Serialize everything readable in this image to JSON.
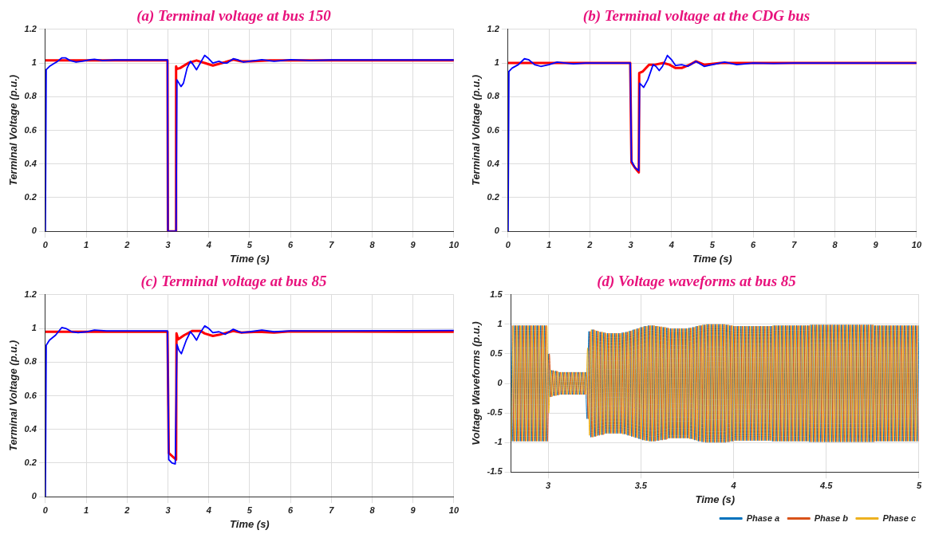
{
  "chart_data": [
    {
      "type": "line",
      "title": "(a) Terminal voltage at bus 150",
      "xlabel": "Time (s)",
      "ylabel": "Terminal Voltage (p.u.)",
      "xlim": [
        0,
        10
      ],
      "xticks": [
        0,
        1,
        2,
        3,
        4,
        5,
        6,
        7,
        8,
        9,
        10
      ],
      "ylim": [
        0,
        1.2
      ],
      "yticks": [
        0,
        0.2,
        0.4,
        0.6,
        0.8,
        1,
        1.2
      ],
      "grid": true,
      "series": [
        {
          "color": "#ff0000",
          "x": [
            0,
            2.99,
            3,
            3.2,
            3.2,
            3.22,
            3.3,
            3.5,
            3.7,
            3.9,
            4.1,
            4.4,
            4.6,
            4.8,
            5,
            5.5,
            6,
            10
          ],
          "values": [
            1.015,
            1.015,
            0,
            0,
            0.98,
            0.965,
            0.97,
            1,
            1.015,
            1,
            0.985,
            1.005,
            1.02,
            1.01,
            1.01,
            1.015,
            1.015,
            1.015
          ]
        },
        {
          "color": "#0000ff",
          "x": [
            0,
            0.02,
            0.1,
            0.2,
            0.3,
            0.4,
            0.5,
            0.6,
            0.75,
            0.9,
            1.1,
            1.2,
            1.4,
            1.7,
            2,
            2.99,
            3,
            3.2,
            3.22,
            3.27,
            3.32,
            3.38,
            3.47,
            3.55,
            3.62,
            3.7,
            3.77,
            3.9,
            3.98,
            4.1,
            4.25,
            4.35,
            4.45,
            4.6,
            4.7,
            4.85,
            5,
            5.3,
            5.6,
            6,
            6.5,
            7,
            10
          ],
          "values": [
            0,
            0.96,
            0.98,
            0.995,
            1.01,
            1.03,
            1.03,
            1.015,
            1.005,
            1.01,
            1.02,
            1.022,
            1.015,
            1.018,
            1.018,
            1.018,
            0,
            0,
            0.9,
            0.88,
            0.86,
            0.88,
            0.97,
            1.01,
            0.99,
            0.96,
            0.99,
            1.045,
            1.03,
            1,
            1.01,
            1,
            1,
            1.025,
            1.02,
            1.005,
            1.01,
            1.02,
            1.01,
            1.02,
            1.015,
            1.018,
            1.018
          ]
        }
      ]
    },
    {
      "type": "line",
      "title": "(b) Terminal voltage at the CDG bus",
      "xlabel": "Time (s)",
      "ylabel": "Terminal Voltage (p.u.)",
      "xlim": [
        0,
        10
      ],
      "xticks": [
        0,
        1,
        2,
        3,
        4,
        5,
        6,
        7,
        8,
        9,
        10
      ],
      "ylim": [
        0,
        1.2
      ],
      "yticks": [
        0,
        0.2,
        0.4,
        0.6,
        0.8,
        1,
        1.2
      ],
      "grid": true,
      "series": [
        {
          "color": "#ff0000",
          "x": [
            0,
            2.99,
            3.02,
            3.1,
            3.2,
            3.21,
            3.3,
            3.45,
            3.6,
            3.8,
            3.95,
            4.1,
            4.25,
            4.45,
            4.6,
            4.8,
            5.2,
            5.5,
            10
          ],
          "values": [
            1,
            1,
            0.41,
            0.38,
            0.35,
            0.94,
            0.95,
            0.99,
            0.99,
            1,
            0.99,
            0.97,
            0.97,
            0.99,
            1.01,
            0.99,
            1,
            1,
            1
          ]
        },
        {
          "color": "#0000ff",
          "x": [
            0,
            0.02,
            0.1,
            0.25,
            0.4,
            0.5,
            0.65,
            0.8,
            1,
            1.2,
            1.4,
            1.6,
            1.9,
            2.99,
            3.02,
            3.1,
            3.2,
            3.22,
            3.32,
            3.42,
            3.55,
            3.62,
            3.7,
            3.78,
            3.9,
            4,
            4.1,
            4.25,
            4.4,
            4.6,
            4.8,
            5,
            5.3,
            5.6,
            6,
            6.5,
            7,
            10
          ],
          "values": [
            0,
            0.95,
            0.97,
            0.99,
            1.025,
            1.02,
            0.99,
            0.98,
            0.99,
            1.005,
            1,
            0.995,
            1,
            1,
            0.42,
            0.38,
            0.36,
            0.88,
            0.855,
            0.9,
            0.99,
            0.98,
            0.955,
            0.98,
            1.045,
            1.02,
            0.985,
            0.99,
            0.98,
            1.01,
            0.98,
            0.99,
            1.005,
            0.99,
            1,
            0.997,
            1,
            1
          ]
        }
      ]
    },
    {
      "type": "line",
      "title": "(c) Terminal voltage at bus 85",
      "xlabel": "Time (s)",
      "ylabel": "Terminal Voltage (p.u.)",
      "xlim": [
        0,
        10
      ],
      "xticks": [
        0,
        1,
        2,
        3,
        4,
        5,
        6,
        7,
        8,
        9,
        10
      ],
      "ylim": [
        0,
        1.2
      ],
      "yticks": [
        0,
        0.2,
        0.4,
        0.6,
        0.8,
        1,
        1.2
      ],
      "grid": true,
      "series": [
        {
          "color": "#ff0000",
          "x": [
            0,
            2.99,
            3.02,
            3.2,
            3.21,
            3.25,
            3.4,
            3.6,
            3.8,
            3.9,
            4.1,
            4.3,
            4.6,
            4.8,
            5.2,
            5.6,
            6,
            10
          ],
          "values": [
            0.98,
            0.98,
            0.26,
            0.22,
            0.97,
            0.935,
            0.96,
            0.985,
            0.985,
            0.97,
            0.955,
            0.965,
            0.985,
            0.975,
            0.98,
            0.975,
            0.982,
            0.98
          ]
        },
        {
          "color": "#0000ff",
          "x": [
            0,
            0.02,
            0.1,
            0.25,
            0.4,
            0.5,
            0.65,
            0.8,
            1,
            1.2,
            1.5,
            2,
            2.99,
            3.02,
            3.1,
            3.18,
            3.22,
            3.27,
            3.33,
            3.45,
            3.55,
            3.62,
            3.7,
            3.78,
            3.9,
            4,
            4.1,
            4.25,
            4.4,
            4.6,
            4.8,
            5,
            5.3,
            5.6,
            6,
            7,
            10
          ],
          "values": [
            0,
            0.9,
            0.93,
            0.96,
            1.005,
            1,
            0.98,
            0.975,
            0.98,
            0.99,
            0.985,
            0.985,
            0.985,
            0.22,
            0.2,
            0.195,
            0.905,
            0.87,
            0.85,
            0.93,
            0.98,
            0.96,
            0.93,
            0.97,
            1.015,
            1,
            0.975,
            0.98,
            0.965,
            0.995,
            0.975,
            0.98,
            0.99,
            0.98,
            0.985,
            0.985,
            0.988
          ]
        }
      ]
    },
    {
      "type": "line",
      "title": "(d) Voltage waveforms at bus 85",
      "xlabel": "Time (s)",
      "ylabel": "Voltage Waveforms (p.u.)",
      "xlim": [
        2.8,
        5
      ],
      "xticks": [
        3,
        3.5,
        4,
        4.5,
        5
      ],
      "ylim": [
        -1.5,
        1.5
      ],
      "yticks": [
        -1.5,
        -1,
        -0.5,
        0,
        0.5,
        1,
        1.5
      ],
      "grid": true,
      "legend": "bottom right",
      "series": [
        {
          "name": "Phase a",
          "color": "#0072bd",
          "x": [
            2.8,
            2.81,
            2.82,
            2.83,
            2.84,
            2.85,
            2.86,
            2.87,
            2.88,
            2.89,
            2.9,
            2.91,
            2.92,
            2.93,
            2.94,
            2.95,
            2.96,
            2.97,
            2.98,
            2.99,
            3,
            3.01,
            3.02,
            3.03,
            3.04,
            3.05,
            3.06,
            3.07,
            3.08,
            3.09,
            3.1,
            3.11,
            3.12,
            3.13,
            3.14,
            3.15,
            3.16,
            3.17,
            3.18,
            3.19,
            3.2,
            3.21,
            3.22,
            3.23,
            3.24,
            3.25,
            3.26,
            3.27,
            3.28,
            3.29,
            3.3,
            3.31,
            3.32,
            3.33,
            3.34,
            3.35,
            3.36,
            3.37,
            3.38,
            3.39,
            3.4,
            3.41,
            3.42,
            3.43,
            3.44,
            3.45,
            3.46,
            3.47,
            3.48,
            3.49,
            3.5,
            3.51,
            3.52,
            3.53,
            3.54,
            3.55,
            3.56,
            3.57,
            3.58,
            3.59,
            3.6,
            3.61,
            3.62,
            3.63,
            3.64,
            3.65,
            3.66,
            3.67,
            3.68,
            3.69,
            3.7,
            3.71,
            3.72,
            3.73,
            3.74,
            3.75,
            3.76,
            3.77,
            3.78,
            3.79,
            3.8,
            3.81,
            3.82,
            3.83,
            3.84,
            3.85,
            3.86,
            3.87,
            3.88,
            3.89,
            3.9,
            3.91,
            3.92,
            3.93,
            3.94,
            3.95,
            3.96,
            3.97,
            3.98,
            3.99,
            4,
            4.01,
            4.02,
            4.03,
            4.04,
            4.05,
            4.06,
            4.07,
            4.08,
            4.09,
            4.1,
            4.11,
            4.12,
            4.13,
            4.14,
            4.15,
            4.16,
            4.17,
            4.18,
            4.19,
            4.2,
            4.21,
            4.22,
            4.23,
            4.24,
            4.25,
            4.26,
            4.27,
            4.28,
            4.29,
            4.3,
            4.31,
            4.32,
            4.33,
            4.34,
            4.35,
            4.36,
            4.37,
            4.38,
            4.39,
            4.4,
            4.41,
            4.42,
            4.43,
            4.44,
            4.45,
            4.46,
            4.47,
            4.48,
            4.49,
            4.5,
            4.51,
            4.52,
            4.53,
            4.54,
            4.55,
            4.56,
            4.57,
            4.58,
            4.59,
            4.6,
            4.61,
            4.62,
            4.63,
            4.64,
            4.65,
            4.66,
            4.67,
            4.68,
            4.69,
            4.7,
            4.71,
            4.72,
            4.73,
            4.74,
            4.75,
            4.76,
            4.77,
            4.78,
            4.79,
            4.8,
            4.81,
            4.82,
            4.83,
            4.84,
            4.85,
            4.86,
            4.87,
            4.88,
            4.89,
            4.9,
            4.91,
            4.92,
            4.93,
            4.94,
            4.95,
            4.96,
            4.97,
            4.98,
            4.99,
            5
          ],
          "values": [
            0.98,
            -0.98,
            0.98,
            -0.98,
            0.98,
            -0.98,
            0.98,
            -0.98,
            0.98,
            -0.98,
            0.98,
            -0.98,
            0.98,
            -0.98,
            0.98,
            -0.98,
            0.98,
            -0.98,
            0.98,
            -0.98,
            0.5,
            -0.23,
            0.22,
            -0.21,
            0.21,
            -0.2,
            0.19,
            -0.19,
            0.19,
            -0.19,
            0.19,
            -0.19,
            0.19,
            -0.19,
            0.19,
            -0.19,
            0.19,
            -0.19,
            0.19,
            -0.19,
            0.19,
            -0.6,
            0.88,
            -0.91,
            0.91,
            -0.9,
            0.89,
            -0.88,
            0.87,
            -0.87,
            0.86,
            -0.85,
            0.85,
            -0.85,
            0.85,
            -0.85,
            0.85,
            -0.85,
            0.85,
            -0.85,
            0.86,
            -0.86,
            0.87,
            -0.88,
            0.89,
            -0.9,
            0.91,
            -0.92,
            0.93,
            -0.94,
            0.95,
            -0.96,
            0.97,
            -0.97,
            0.98,
            -0.98,
            0.98,
            -0.98,
            0.97,
            -0.97,
            0.96,
            -0.96,
            0.95,
            -0.95,
            0.94,
            -0.93,
            0.93,
            -0.93,
            0.93,
            -0.93,
            0.93,
            -0.93,
            0.93,
            -0.93,
            0.93,
            -0.93,
            0.94,
            -0.94,
            0.95,
            -0.96,
            0.97,
            -0.98,
            0.98,
            -0.99,
            0.99,
            -1,
            1,
            -1,
            1,
            -1,
            1,
            -1,
            1,
            -1,
            1,
            -1,
            0.99,
            -0.99,
            0.98,
            -0.98,
            0.97,
            -0.97,
            0.97,
            -0.97,
            0.97,
            -0.97,
            0.97,
            -0.97,
            0.97,
            -0.97,
            0.97,
            -0.97,
            0.97,
            -0.97,
            0.97,
            -0.97,
            0.97,
            -0.97,
            0.97,
            -0.97,
            0.97,
            -0.98,
            0.98,
            -0.98,
            0.98,
            -0.98,
            0.98,
            -0.98,
            0.98,
            -0.98,
            0.98,
            -0.98,
            0.98,
            -0.98,
            0.98,
            -0.98,
            0.98,
            -0.98,
            0.98,
            -0.98,
            0.98,
            -0.99,
            0.99,
            -0.99,
            0.99,
            -0.99,
            0.99,
            -0.99,
            0.99,
            -0.99,
            0.99,
            -0.99,
            0.99,
            -0.99,
            0.99,
            -0.99,
            0.99,
            -0.99,
            0.99,
            -0.99,
            0.99,
            -0.99,
            0.99,
            -0.99,
            0.99,
            -0.99,
            0.99,
            -0.99,
            0.99,
            -0.99,
            0.99,
            -0.99,
            0.99,
            -0.99,
            0.99,
            -0.99,
            0.98,
            -0.98,
            0.98,
            -0.98,
            0.98,
            -0.98,
            0.98,
            -0.98,
            0.98,
            -0.98,
            0.98,
            -0.98,
            0.98,
            -0.98,
            0.98,
            -0.98,
            0.98,
            -0.98,
            0.98,
            -0.98,
            0.98,
            -0.98,
            0.98,
            -0.98,
            0.98
          ]
        },
        {
          "name": "Phase b",
          "color": "#d95319",
          "x": [
            2.8067,
            2.8167,
            2.8267,
            2.8367,
            2.8467,
            2.8567,
            2.8667,
            2.8767,
            2.8867,
            2.8967,
            2.9067,
            2.9167,
            2.9267,
            2.9367,
            2.9467,
            2.9567,
            2.9667,
            2.9767,
            2.9867,
            2.9967,
            3.0067,
            3.0167,
            3.0267,
            3.0367,
            3.0467,
            3.0567,
            3.0667,
            3.0767,
            3.0867,
            3.0967,
            3.1067,
            3.1167,
            3.1267,
            3.1367,
            3.1467,
            3.1567,
            3.1667,
            3.1767,
            3.1867,
            3.1967,
            3.2067,
            3.2167,
            3.2267,
            3.2367,
            3.2467,
            3.2567,
            3.2667,
            3.2767,
            3.2867,
            3.2967,
            3.3067,
            3.3167,
            3.3267,
            3.3367,
            3.3467,
            3.3567,
            3.3667,
            3.3767,
            3.3867,
            3.3967,
            3.4067,
            3.4167,
            3.4267,
            3.4367,
            3.4467,
            3.4567,
            3.4667,
            3.4767,
            3.4867,
            3.4967,
            3.5067,
            3.5167,
            3.5267,
            3.5367,
            3.5467,
            3.5567,
            3.5667,
            3.5767,
            3.5867,
            3.5967,
            3.6067,
            3.6167,
            3.6267,
            3.6367,
            3.6467,
            3.6567,
            3.6667,
            3.6767,
            3.6867,
            3.6967,
            3.7067,
            3.7167,
            3.7267,
            3.7367,
            3.7467,
            3.7567,
            3.7667,
            3.7767,
            3.7867,
            3.7967,
            3.8067,
            3.8167,
            3.8267,
            3.8367,
            3.8467,
            3.8567,
            3.8667,
            3.8767,
            3.8867,
            3.8967,
            3.9067,
            3.9167,
            3.9267,
            3.9367,
            3.9467,
            3.9567,
            3.9667,
            3.9767,
            3.9867,
            3.9967,
            4.0067,
            4.0167,
            4.0267,
            4.0367,
            4.0467,
            4.0567,
            4.0667,
            4.0767,
            4.0867,
            4.0967,
            4.1067,
            4.1167,
            4.1267,
            4.1367,
            4.1467,
            4.1567,
            4.1667,
            4.1767,
            4.1867,
            4.1967,
            4.2067,
            4.2167,
            4.2267,
            4.2367,
            4.2467,
            4.2567,
            4.2667,
            4.2767,
            4.2867,
            4.2967,
            4.3067,
            4.3167,
            4.3267,
            4.3367,
            4.3467,
            4.3567,
            4.3667,
            4.3767,
            4.3867,
            4.3967,
            4.4067,
            4.4167,
            4.4267,
            4.4367,
            4.4467,
            4.4567,
            4.4667,
            4.4767,
            4.4867,
            4.4967,
            4.5067,
            4.5167,
            4.5267,
            4.5367,
            4.5467,
            4.5567,
            4.5667,
            4.5767,
            4.5867,
            4.5967,
            4.6067,
            4.6167,
            4.6267,
            4.6367,
            4.6467,
            4.6567,
            4.6667,
            4.6767,
            4.6867,
            4.6967,
            4.7067,
            4.7167,
            4.7267,
            4.7367,
            4.7467,
            4.7567,
            4.7667,
            4.7767,
            4.7867,
            4.7967,
            4.8067,
            4.8167,
            4.8267,
            4.8367,
            4.8467,
            4.8567,
            4.8667,
            4.8767,
            4.8867,
            4.8967,
            4.9067,
            4.9167,
            4.9267,
            4.9367,
            4.9467,
            4.9567,
            4.9667,
            4.9767,
            4.9867,
            4.9967
          ],
          "values": [
            0.98,
            -0.98,
            0.98,
            -0.98,
            0.98,
            -0.98,
            0.98,
            -0.98,
            0.98,
            -0.98,
            0.98,
            -0.98,
            0.98,
            -0.98,
            0.98,
            -0.98,
            0.98,
            -0.98,
            0.98,
            -0.98,
            0.5,
            -0.23,
            0.22,
            -0.21,
            0.21,
            -0.2,
            0.19,
            -0.19,
            0.19,
            -0.19,
            0.19,
            -0.19,
            0.19,
            -0.19,
            0.19,
            -0.19,
            0.19,
            -0.19,
            0.19,
            -0.19,
            0.19,
            -0.6,
            0.88,
            -0.91,
            0.91,
            -0.9,
            0.89,
            -0.88,
            0.87,
            -0.87,
            0.86,
            -0.85,
            0.85,
            -0.85,
            0.85,
            -0.85,
            0.85,
            -0.85,
            0.85,
            -0.85,
            0.86,
            -0.86,
            0.87,
            -0.88,
            0.89,
            -0.9,
            0.91,
            -0.92,
            0.93,
            -0.94,
            0.95,
            -0.96,
            0.97,
            -0.97,
            0.98,
            -0.98,
            0.98,
            -0.98,
            0.97,
            -0.97,
            0.96,
            -0.96,
            0.95,
            -0.95,
            0.94,
            -0.93,
            0.93,
            -0.93,
            0.93,
            -0.93,
            0.93,
            -0.93,
            0.93,
            -0.93,
            0.93,
            -0.93,
            0.94,
            -0.94,
            0.95,
            -0.96,
            0.97,
            -0.98,
            0.98,
            -0.99,
            0.99,
            -1,
            1,
            -1,
            1,
            -1,
            1,
            -1,
            1,
            -1,
            1,
            -1,
            0.99,
            -0.99,
            0.98,
            -0.98,
            0.97,
            -0.97,
            0.97,
            -0.97,
            0.97,
            -0.97,
            0.97,
            -0.97,
            0.97,
            -0.97,
            0.97,
            -0.97,
            0.97,
            -0.97,
            0.97,
            -0.97,
            0.97,
            -0.97,
            0.97,
            -0.97,
            0.97,
            -0.98,
            0.98,
            -0.98,
            0.98,
            -0.98,
            0.98,
            -0.98,
            0.98,
            -0.98,
            0.98,
            -0.98,
            0.98,
            -0.98,
            0.98,
            -0.98,
            0.98,
            -0.98,
            0.98,
            -0.98,
            0.98,
            -0.99,
            0.99,
            -0.99,
            0.99,
            -0.99,
            0.99,
            -0.99,
            0.99,
            -0.99,
            0.99,
            -0.99,
            0.99,
            -0.99,
            0.99,
            -0.99,
            0.99,
            -0.99,
            0.99,
            -0.99,
            0.99,
            -0.99,
            0.99,
            -0.99,
            0.99,
            -0.99,
            0.99,
            -0.99,
            0.99,
            -0.99,
            0.99,
            -0.99,
            0.99,
            -0.99,
            0.99,
            -0.99,
            0.98,
            -0.98,
            0.98,
            -0.98,
            0.98,
            -0.98,
            0.98,
            -0.98,
            0.98,
            -0.98,
            0.98,
            -0.98,
            0.98,
            -0.98,
            0.98,
            -0.98,
            0.98,
            -0.98,
            0.98,
            -0.98,
            0.98,
            -0.98,
            0.98,
            -0.98
          ]
        },
        {
          "name": "Phase c",
          "color": "#edb120",
          "x": [
            2.8033,
            2.8133,
            2.8233,
            2.8333,
            2.8433,
            2.8533,
            2.8633,
            2.8733,
            2.8833,
            2.8933,
            2.9033,
            2.9133,
            2.9233,
            2.9333,
            2.9433,
            2.9533,
            2.9633,
            2.9733,
            2.9833,
            2.9933,
            3.0033,
            3.0133,
            3.0233,
            3.0333,
            3.0433,
            3.0533,
            3.0633,
            3.0733,
            3.0833,
            3.0933,
            3.1033,
            3.1133,
            3.1233,
            3.1333,
            3.1433,
            3.1533,
            3.1633,
            3.1733,
            3.1833,
            3.1933,
            3.2033,
            3.2133,
            3.2233,
            3.2333,
            3.2433,
            3.2533,
            3.2633,
            3.2733,
            3.2833,
            3.2933,
            3.3033,
            3.3133,
            3.3233,
            3.3333,
            3.3433,
            3.3533,
            3.3633,
            3.3733,
            3.3833,
            3.3933,
            3.4033,
            3.4133,
            3.4233,
            3.4333,
            3.4433,
            3.4533,
            3.4633,
            3.4733,
            3.4833,
            3.4933,
            3.5033,
            3.5133,
            3.5233,
            3.5333,
            3.5433,
            3.5533,
            3.5633,
            3.5733,
            3.5833,
            3.5933,
            3.6033,
            3.6133,
            3.6233,
            3.6333,
            3.6433,
            3.6533,
            3.6633,
            3.6733,
            3.6833,
            3.6933,
            3.7033,
            3.7133,
            3.7233,
            3.7333,
            3.7433,
            3.7533,
            3.7633,
            3.7733,
            3.7833,
            3.7933,
            3.8033,
            3.8133,
            3.8233,
            3.8333,
            3.8433,
            3.8533,
            3.8633,
            3.8733,
            3.8833,
            3.8933,
            3.9033,
            3.9133,
            3.9233,
            3.9333,
            3.9433,
            3.9533,
            3.9633,
            3.9733,
            3.9833,
            3.9933,
            4.0033,
            4.0133,
            4.0233,
            4.0333,
            4.0433,
            4.0533,
            4.0633,
            4.0733,
            4.0833,
            4.0933,
            4.1033,
            4.1133,
            4.1233,
            4.1333,
            4.1433,
            4.1533,
            4.1633,
            4.1733,
            4.1833,
            4.1933,
            4.2033,
            4.2133,
            4.2233,
            4.2333,
            4.2433,
            4.2533,
            4.2633,
            4.2733,
            4.2833,
            4.2933,
            4.3033,
            4.3133,
            4.3233,
            4.3333,
            4.3433,
            4.3533,
            4.3633,
            4.3733,
            4.3833,
            4.3933,
            4.4033,
            4.4133,
            4.4233,
            4.4333,
            4.4433,
            4.4533,
            4.4633,
            4.4733,
            4.4833,
            4.4933,
            4.5033,
            4.5133,
            4.5233,
            4.5333,
            4.5433,
            4.5533,
            4.5633,
            4.5733,
            4.5833,
            4.5933,
            4.6033,
            4.6133,
            4.6233,
            4.6333,
            4.6433,
            4.6533,
            4.6633,
            4.6733,
            4.6833,
            4.6933,
            4.7033,
            4.7133,
            4.7233,
            4.7333,
            4.7433,
            4.7533,
            4.7633,
            4.7733,
            4.7833,
            4.7933,
            4.8033,
            4.8133,
            4.8233,
            4.8333,
            4.8433,
            4.8533,
            4.8633,
            4.8733,
            4.8833,
            4.8933,
            4.9033,
            4.9133,
            4.9233,
            4.9333,
            4.9433,
            4.9533,
            4.9633,
            4.9733,
            4.9833,
            4.9933
          ],
          "values": [
            -0.98,
            0.98,
            -0.98,
            0.98,
            -0.98,
            0.98,
            -0.98,
            0.98,
            -0.98,
            0.98,
            -0.98,
            0.98,
            -0.98,
            0.98,
            -0.98,
            0.98,
            -0.98,
            0.98,
            -0.98,
            0.98,
            -0.5,
            0.23,
            -0.22,
            0.21,
            -0.21,
            0.2,
            -0.19,
            0.19,
            -0.19,
            0.19,
            -0.19,
            0.19,
            -0.19,
            0.19,
            -0.19,
            0.19,
            -0.19,
            0.19,
            -0.19,
            0.19,
            -0.19,
            0.6,
            -0.88,
            0.91,
            -0.91,
            0.9,
            -0.89,
            0.88,
            -0.87,
            0.87,
            -0.86,
            0.85,
            -0.85,
            0.85,
            -0.85,
            0.85,
            -0.85,
            0.85,
            -0.85,
            0.85,
            -0.86,
            0.86,
            -0.87,
            0.88,
            -0.89,
            0.9,
            -0.91,
            0.92,
            -0.93,
            0.94,
            -0.95,
            0.96,
            -0.97,
            0.97,
            -0.98,
            0.98,
            -0.98,
            0.98,
            -0.97,
            0.97,
            -0.96,
            0.96,
            -0.95,
            0.95,
            -0.94,
            0.93,
            -0.93,
            0.93,
            -0.93,
            0.93,
            -0.93,
            0.93,
            -0.93,
            0.93,
            -0.93,
            0.93,
            -0.94,
            0.94,
            -0.95,
            0.96,
            -0.97,
            0.98,
            -0.98,
            0.99,
            -0.99,
            1,
            -1,
            1,
            -1,
            1,
            -1,
            1,
            -1,
            1,
            -1,
            1,
            -0.99,
            0.99,
            -0.98,
            0.98,
            -0.97,
            0.97,
            -0.97,
            0.97,
            -0.97,
            0.97,
            -0.97,
            0.97,
            -0.97,
            0.97,
            -0.97,
            0.97,
            -0.97,
            0.97,
            -0.97,
            0.97,
            -0.97,
            0.97,
            -0.97,
            0.97,
            -0.97,
            0.98,
            -0.98,
            0.98,
            -0.98,
            0.98,
            -0.98,
            0.98,
            -0.98,
            0.98,
            -0.98,
            0.98,
            -0.98,
            0.98,
            -0.98,
            0.98,
            -0.98,
            0.98,
            -0.98,
            0.98,
            -0.98,
            0.99,
            -0.99,
            0.99,
            -0.99,
            0.99,
            -0.99,
            0.99,
            -0.99,
            0.99,
            -0.99,
            0.99,
            -0.99,
            0.99,
            -0.99,
            0.99,
            -0.99,
            0.99,
            -0.99,
            0.99,
            -0.99,
            0.99,
            -0.99,
            0.99,
            -0.99,
            0.99,
            -0.99,
            0.99,
            -0.99,
            0.99,
            -0.99,
            0.99,
            -0.99,
            0.99,
            -0.99,
            0.99,
            -0.98,
            0.98,
            -0.98,
            0.98,
            -0.98,
            0.98,
            -0.98,
            0.98,
            -0.98,
            0.98,
            -0.98,
            0.98,
            -0.98,
            0.98,
            -0.98,
            0.98,
            -0.98,
            0.98,
            -0.98,
            0.98,
            -0.98,
            0.98,
            -0.98,
            0.98
          ]
        }
      ]
    }
  ]
}
